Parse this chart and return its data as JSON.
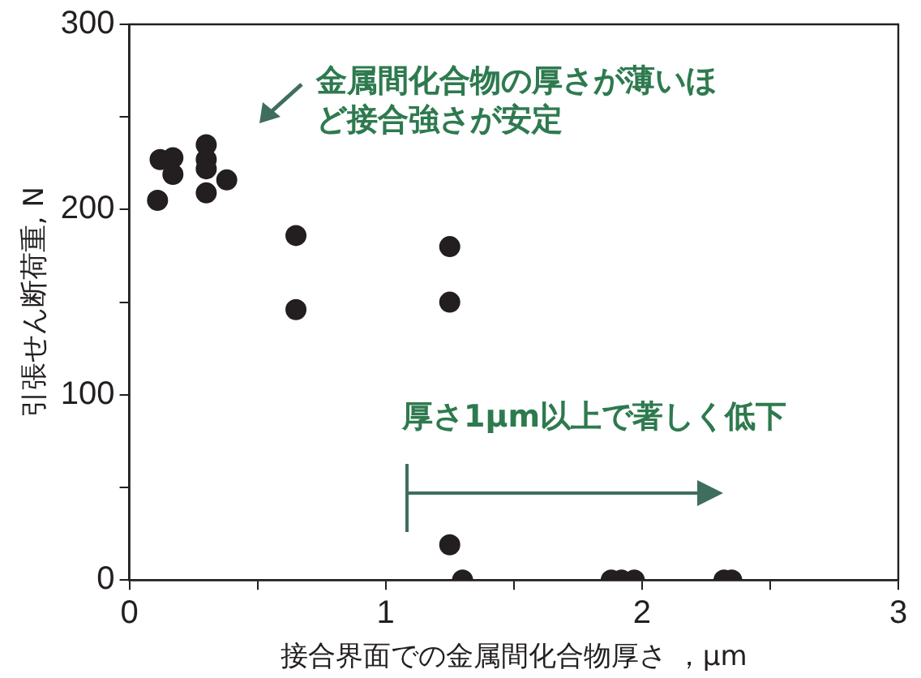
{
  "chart_data": {
    "type": "scatter",
    "xlabel": "接合界面での金属間化合物厚さ ，μm",
    "ylabel": "引張せん断荷重, N",
    "x": [
      0.11,
      0.12,
      0.17,
      0.17,
      0.3,
      0.3,
      0.3,
      0.3,
      0.38,
      0.65,
      0.65,
      1.25,
      1.25,
      1.25,
      1.3,
      1.88,
      1.92,
      1.97,
      2.32,
      2.35
    ],
    "values": [
      205,
      227,
      228,
      219,
      235,
      227,
      222,
      209,
      216,
      186,
      146,
      180,
      150,
      19,
      0,
      0,
      0,
      0,
      0,
      0
    ],
    "color": "#231f20",
    "marker": "circle",
    "xlim": [
      0,
      3
    ],
    "xticks": [
      0,
      {
        "value": 0.5,
        "label": null
      },
      1,
      {
        "value": 1.5,
        "label": null
      },
      2,
      {
        "value": 2.5,
        "label": null
      },
      3
    ],
    "ylim": [
      0,
      300
    ],
    "yticks": [
      0,
      {
        "value": 50,
        "label": null
      },
      100,
      {
        "value": 150,
        "label": null
      },
      200,
      {
        "value": 250,
        "label": null
      },
      300
    ],
    "grid": false,
    "legend": false,
    "annotations": [
      "金属間化合物の厚さが薄いほど接合強さが安定",
      "厚さ1μm以上で著しく低下"
    ]
  }
}
